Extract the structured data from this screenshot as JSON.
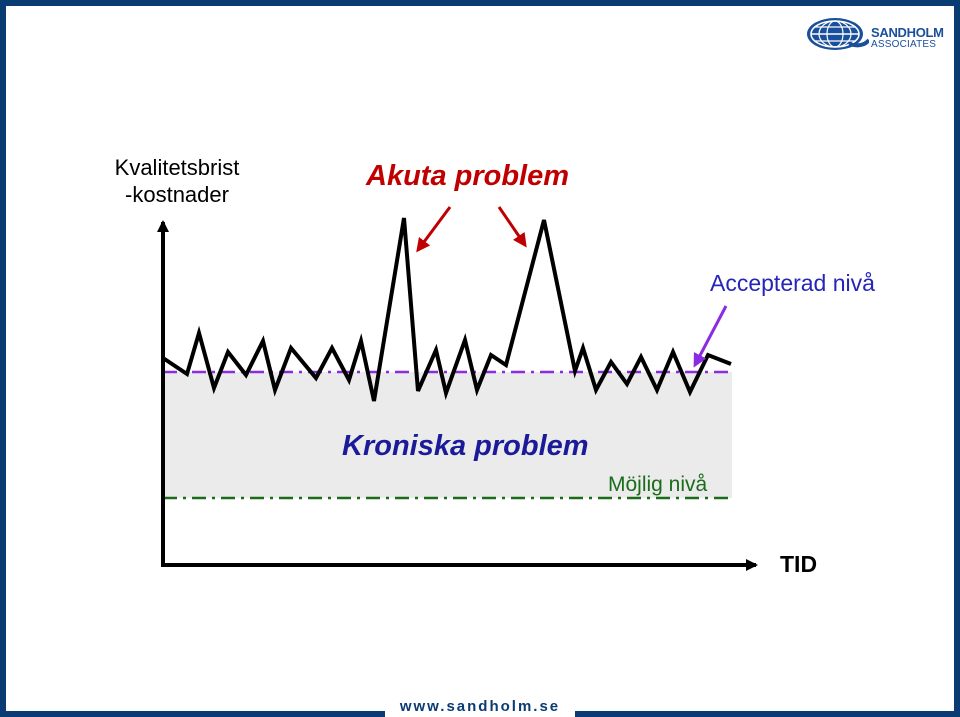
{
  "brand": {
    "line1": "SANDHOLM",
    "line2": "ASSOCIATES"
  },
  "footer": {
    "url": "www.sandholm.se"
  },
  "diagram": {
    "y_axis_label_line1": "Kvalitetsbrist",
    "y_axis_label_line2": "-kostnader",
    "x_axis_label": "TID",
    "acute_label": "Akuta problem",
    "accepted_label": "Accepterad nivå",
    "chronic_label": "Kroniska problem",
    "possible_label": "Möjlig nivå"
  },
  "colors": {
    "frame": "#0b3b73",
    "acute": "#c00000",
    "accepted_line": "#8b2be2",
    "possible_line": "#1a6b1a",
    "chronic_zone": "#ebebeb",
    "curve": "#000000"
  }
}
